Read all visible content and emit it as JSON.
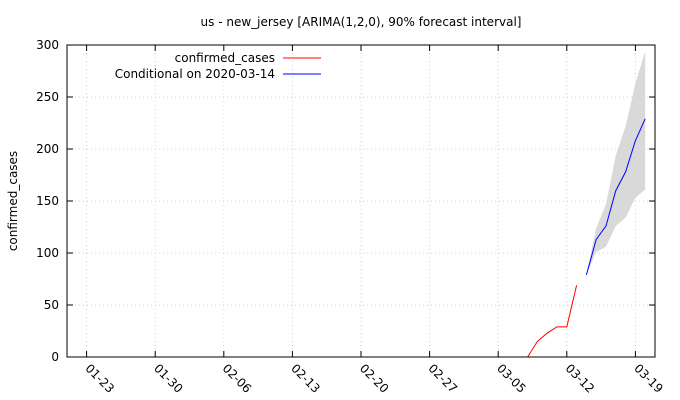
{
  "chart_data": {
    "type": "line",
    "title": "us - new_jersey [ARIMA(1,2,0), 90% forecast interval]",
    "xlabel": "",
    "ylabel": "confirmed_cases",
    "ylim": [
      0,
      300
    ],
    "yticks": [
      0,
      50,
      100,
      150,
      200,
      250,
      300
    ],
    "xlim": [
      "2020-01-21",
      "2020-03-21"
    ],
    "xticks": [
      "01-23",
      "01-30",
      "02-06",
      "02-13",
      "02-20",
      "02-27",
      "03-05",
      "03-12",
      "03-19"
    ],
    "grid": true,
    "legend_position": "top-left",
    "series": [
      {
        "name": "confirmed_cases",
        "color": "#ff0000",
        "x": [
          "2020-03-08",
          "2020-03-09",
          "2020-03-10",
          "2020-03-11",
          "2020-03-12",
          "2020-03-13"
        ],
        "values": [
          0,
          15,
          23,
          29,
          29,
          69
        ]
      },
      {
        "name": "Conditional on 2020-03-14",
        "color": "#0000ff",
        "x": [
          "2020-03-14",
          "2020-03-15",
          "2020-03-16",
          "2020-03-17",
          "2020-03-18",
          "2020-03-19",
          "2020-03-20"
        ],
        "values": [
          79,
          113,
          126,
          160,
          178,
          208,
          229
        ]
      }
    ],
    "forecast_interval": {
      "color": "#d9d9d9",
      "x": [
        "2020-03-14",
        "2020-03-15",
        "2020-03-16",
        "2020-03-17",
        "2020-03-18",
        "2020-03-19",
        "2020-03-20"
      ],
      "lower": [
        79,
        101,
        106,
        126,
        134,
        153,
        161
      ],
      "upper": [
        79,
        124,
        147,
        194,
        222,
        263,
        294
      ]
    }
  }
}
